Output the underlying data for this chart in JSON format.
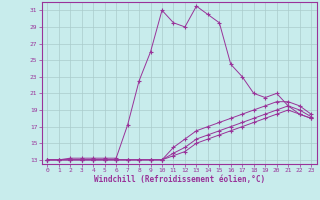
{
  "xlabel": "Windchill (Refroidissement éolien,°C)",
  "xlim": [
    -0.5,
    23.5
  ],
  "ylim": [
    12.5,
    32.0
  ],
  "yticks": [
    13,
    15,
    17,
    19,
    21,
    23,
    25,
    27,
    29,
    31
  ],
  "xticks": [
    0,
    1,
    2,
    3,
    4,
    5,
    6,
    7,
    8,
    9,
    10,
    11,
    12,
    13,
    14,
    15,
    16,
    17,
    18,
    19,
    20,
    21,
    22,
    23
  ],
  "bg_color": "#c8ecec",
  "line_color": "#993399",
  "grid_color": "#aacccc",
  "series": [
    [
      13.0,
      13.0,
      13.2,
      13.2,
      13.2,
      13.2,
      13.2,
      17.2,
      22.5,
      26.0,
      31.0,
      29.5,
      29.0,
      31.5,
      30.5,
      29.5,
      24.5,
      23.0,
      21.0,
      20.5,
      21.0,
      19.5,
      18.5,
      18.0
    ],
    [
      13.0,
      13.0,
      13.0,
      13.0,
      13.0,
      13.0,
      13.0,
      13.0,
      13.0,
      13.0,
      13.0,
      13.5,
      14.0,
      15.0,
      15.5,
      16.0,
      16.5,
      17.0,
      17.5,
      18.0,
      18.5,
      19.0,
      18.5,
      18.0
    ],
    [
      13.0,
      13.0,
      13.0,
      13.0,
      13.0,
      13.0,
      13.0,
      13.0,
      13.0,
      13.0,
      13.0,
      13.8,
      14.5,
      15.5,
      16.0,
      16.5,
      17.0,
      17.5,
      18.0,
      18.5,
      19.0,
      19.5,
      19.0,
      18.2
    ],
    [
      13.0,
      13.0,
      13.0,
      13.0,
      13.0,
      13.0,
      13.0,
      13.0,
      13.0,
      13.0,
      13.0,
      14.5,
      15.5,
      16.5,
      17.0,
      17.5,
      18.0,
      18.5,
      19.0,
      19.5,
      20.0,
      20.0,
      19.5,
      18.5
    ]
  ]
}
